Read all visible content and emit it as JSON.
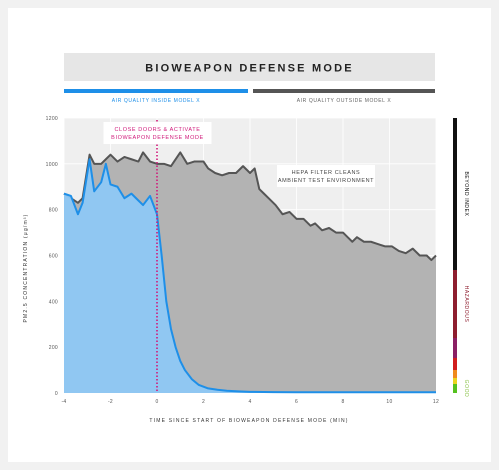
{
  "chart_data": {
    "type": "area",
    "title": "BIOWEAPON DEFENSE MODE",
    "xlabel": "TIME SINCE START OF BIOWEAPON DEFENSE MODE (MIN)",
    "ylabel": "PM2.5 CONCENTRATION (μg/m³)",
    "xlim": [
      -4,
      12
    ],
    "ylim": [
      0,
      1200
    ],
    "x_ticks": [
      "-4",
      "-2",
      "0",
      "2",
      "4",
      "6",
      "8",
      "10",
      "12"
    ],
    "y_ticks": [
      "0",
      "200",
      "400",
      "600",
      "800",
      "1000",
      "1200"
    ],
    "grid": true,
    "legend_position": "top",
    "series": [
      {
        "name": "AIR QUALITY INSIDE MODEL X",
        "color": "#1e8fe8",
        "fill": "#8ec8f5",
        "x": [
          -4,
          -3.7,
          -3.4,
          -3.2,
          -2.9,
          -2.7,
          -2.4,
          -2.2,
          -2,
          -1.7,
          -1.4,
          -1.1,
          -0.8,
          -0.6,
          -0.3,
          0,
          0.2,
          0.4,
          0.6,
          0.8,
          1,
          1.2,
          1.5,
          1.8,
          2.2,
          2.6,
          3,
          3.5,
          4,
          5,
          6,
          7,
          8,
          9,
          10,
          11,
          12
        ],
        "y": [
          870,
          860,
          780,
          830,
          1020,
          880,
          920,
          1000,
          910,
          900,
          850,
          870,
          840,
          820,
          860,
          780,
          600,
          400,
          280,
          200,
          140,
          100,
          60,
          35,
          20,
          14,
          10,
          7,
          5,
          4,
          3,
          3,
          3,
          3,
          3,
          3,
          3
        ]
      },
      {
        "name": "AIR QUALITY OUTSIDE MODEL X",
        "color": "#555555",
        "fill": "#b3b3b3",
        "x": [
          -4,
          -3.7,
          -3.4,
          -3.2,
          -2.9,
          -2.7,
          -2.4,
          -2.2,
          -2,
          -1.7,
          -1.4,
          -1.1,
          -0.8,
          -0.6,
          -0.3,
          0,
          0.3,
          0.6,
          1,
          1.3,
          1.6,
          2,
          2.2,
          2.5,
          2.8,
          3.1,
          3.4,
          3.7,
          4,
          4.2,
          4.4,
          4.6,
          4.8,
          5.1,
          5.4,
          5.7,
          6,
          6.3,
          6.6,
          6.8,
          7.1,
          7.4,
          7.7,
          8,
          8.2,
          8.4,
          8.6,
          8.9,
          9.2,
          9.5,
          9.8,
          10.1,
          10.4,
          10.7,
          11,
          11.3,
          11.6,
          11.8,
          12
        ],
        "y": [
          870,
          850,
          830,
          850,
          1040,
          1000,
          1000,
          1020,
          1040,
          1010,
          1030,
          1020,
          1010,
          1050,
          1010,
          1000,
          1000,
          990,
          1050,
          1000,
          1010,
          1010,
          980,
          960,
          950,
          960,
          960,
          990,
          960,
          980,
          890,
          870,
          850,
          820,
          780,
          790,
          760,
          760,
          730,
          740,
          710,
          720,
          700,
          700,
          680,
          660,
          680,
          660,
          660,
          650,
          640,
          640,
          620,
          610,
          630,
          600,
          600,
          580,
          600
        ]
      }
    ],
    "annotations": [
      {
        "x": 0,
        "text": [
          "CLOSE DOORS & ACTIVATE",
          "BIOWEAPON DEFENSE MODE"
        ],
        "color": "#d0197a"
      },
      {
        "text": [
          "HEPA FILTER CLEANS",
          "AMBIENT TEST ENVIRONMENT"
        ],
        "color": "#444444"
      }
    ],
    "scale_bands": [
      {
        "label": "BEYOND INDEX",
        "from": 500,
        "to": 1200,
        "color": "#111111"
      },
      {
        "label": "HAZARDOUS",
        "from": 250,
        "to": 500,
        "color": "#8e1d2e"
      },
      {
        "label": "",
        "from": 150,
        "to": 250,
        "color": "#8b1f64"
      },
      {
        "label": "",
        "from": 55,
        "to": 150,
        "color": "#d11d1d"
      },
      {
        "label": "",
        "from": 35,
        "to": 55,
        "color": "#f08a1d"
      },
      {
        "label": "",
        "from": 12,
        "to": 35,
        "color": "#e9d51f"
      },
      {
        "label": "GOOD",
        "from": 0,
        "to": 12,
        "color": "#55c11f"
      }
    ],
    "scale_good_color": "#8bc34a"
  }
}
